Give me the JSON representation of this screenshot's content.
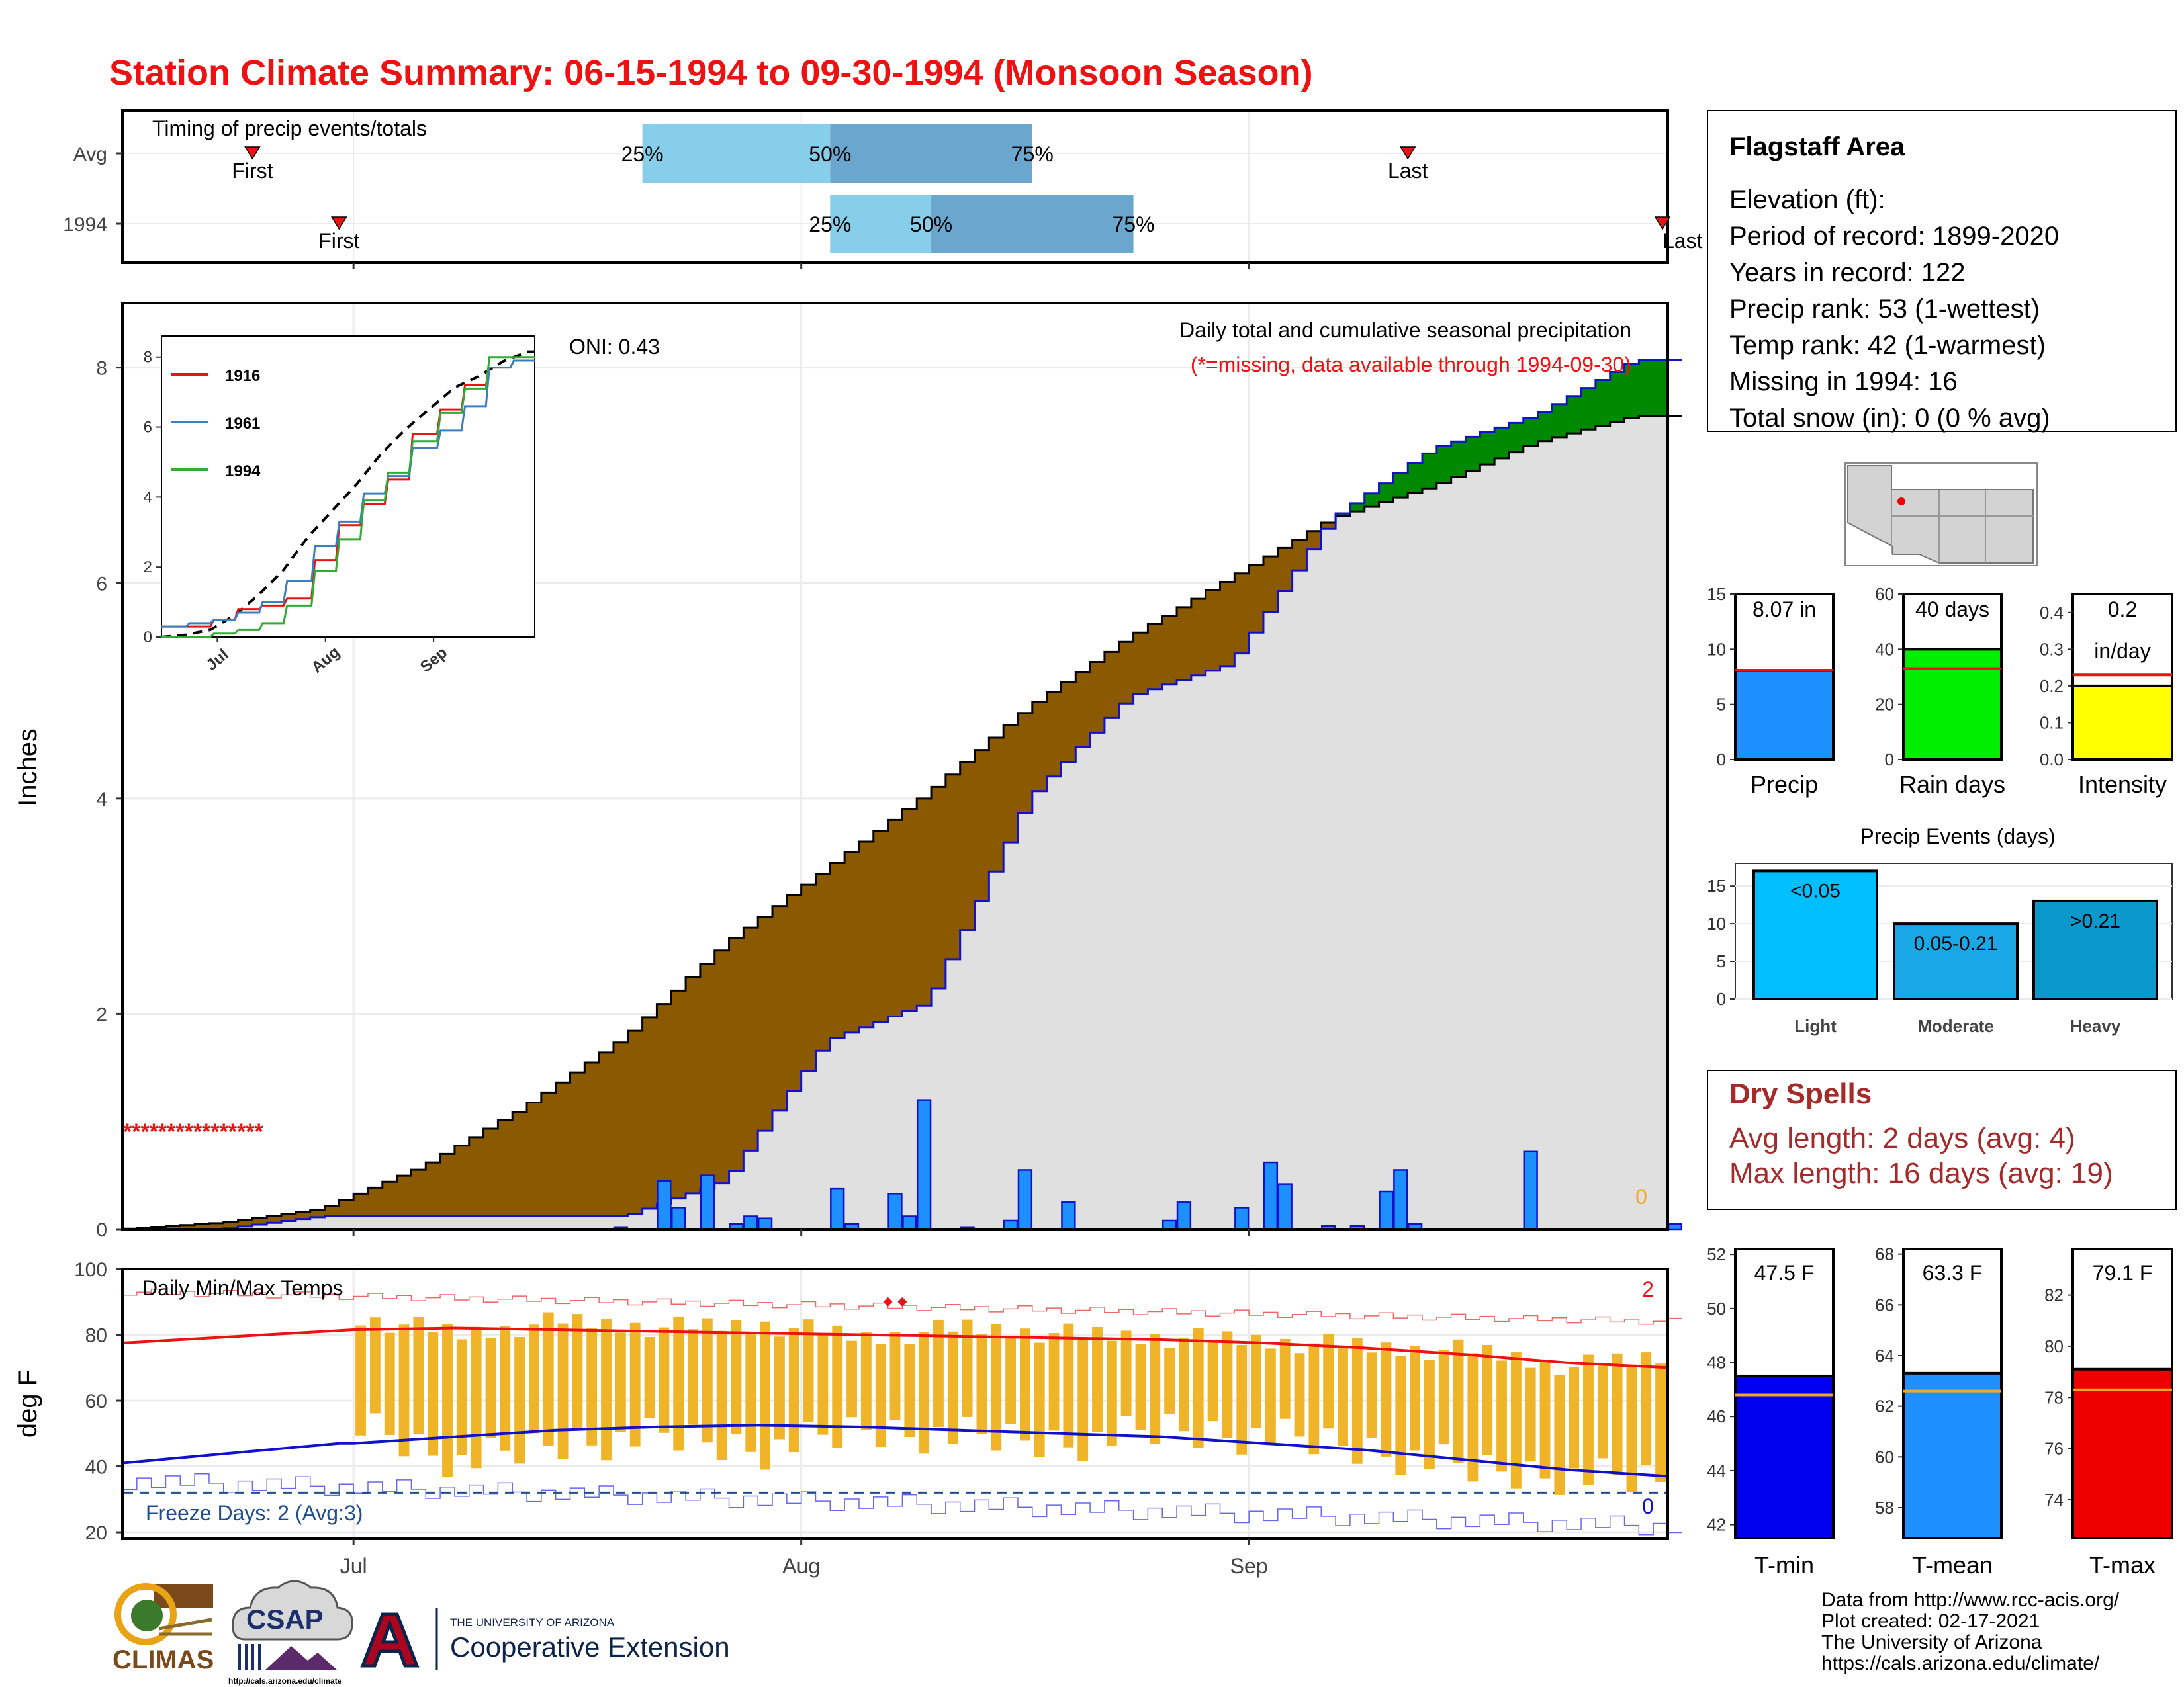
{
  "title": "Station Climate Summary: 06-15-1994 to 09-30-1994 (Monsoon Season)",
  "colors": {
    "title": "#ee1111",
    "q_light": "#87ceeb",
    "q_dark": "#6ba6cf",
    "deficit": "#8b5a00",
    "surplus": "#008800",
    "bars": "#1e8fff",
    "missing": "#ee1111",
    "dry": "#a52a2a",
    "tmax_line": "#ee1111",
    "tmin_line": "#1111cc"
  },
  "timing": {
    "title": "Timing of precip events/totals",
    "rows": [
      {
        "label": "Avg",
        "first": "First",
        "last": "Last",
        "q25": "25%",
        "q50": "50%",
        "q75": "75%",
        "first_date": "1994-06-24",
        "last_date": "1994-09-12",
        "q25_date": "1994-07-21",
        "q50_date": "1994-08-03",
        "q75_date": "1994-08-17"
      },
      {
        "label": "1994",
        "first": "First",
        "last": "Last",
        "q25": "25%",
        "q50": "50%",
        "q75": "75%",
        "first_date": "1994-06-30",
        "last_date": "1994-09-30",
        "q25_date": "1994-08-03",
        "q50_date": "1994-08-10",
        "q75_date": "1994-08-24"
      }
    ]
  },
  "x_ticks": [
    {
      "label": "Jul",
      "date": "1994-07-01"
    },
    {
      "label": "Aug",
      "date": "1994-08-01"
    },
    {
      "label": "Sep",
      "date": "1994-09-01"
    }
  ],
  "precip": {
    "ylabel": "Inches",
    "annotation_title": "Daily total and cumulative seasonal precipitation",
    "annotation_missing": "(*=missing, data available through 1994-09-30)",
    "oni": "ONI: 0.43",
    "missing_marker": "****************",
    "corner_value": "0",
    "ylim": [
      0,
      8.6
    ],
    "yticks": [
      "0",
      "2",
      "4",
      "6",
      "8"
    ]
  },
  "inset": {
    "legend": [
      "1916",
      "1961",
      "1994"
    ],
    "legend_colors": [
      "#ee1111",
      "#3a7fbf",
      "#33aa33"
    ],
    "yticks": [
      "0",
      "2",
      "4",
      "6",
      "8"
    ],
    "xticks": [
      "Jul",
      "Aug",
      "Sep"
    ]
  },
  "info": {
    "station": "Flagstaff Area",
    "lines": [
      "Elevation (ft):",
      "Period of record: 1899-2020",
      "Years in record: 122",
      "Precip rank: 53 (1-wettest)",
      "Temp rank: 42 (1-warmest)",
      "Missing in 1994: 16",
      "Total snow (in): 0 (0 % avg)"
    ]
  },
  "mini_bars": [
    {
      "label": "Precip",
      "value": 8.07,
      "value_text": "8.07 in",
      "avg": 8.1,
      "ymax": 15,
      "yticks": [
        "0",
        "5",
        "10",
        "15"
      ],
      "color": "#1e8fff"
    },
    {
      "label": "Rain days",
      "value": 40,
      "value_text": "40 days",
      "avg": 33,
      "ymax": 60,
      "yticks": [
        "0",
        "20",
        "40",
        "60"
      ],
      "color": "#00ee00"
    },
    {
      "label": "Intensity",
      "value": 0.2,
      "value_text": "0.2",
      "value_text2": "in/day",
      "avg": 0.23,
      "ymax": 0.45,
      "yticks": [
        "0.0",
        "0.1",
        "0.2",
        "0.3",
        "0.4"
      ],
      "color": "#ffff00"
    }
  ],
  "events": {
    "title": "Precip Events (days)",
    "categories": [
      "Light",
      "Moderate",
      "Heavy"
    ],
    "labels": [
      "<0.05",
      "0.05-0.21",
      ">0.21"
    ],
    "values": [
      17,
      10,
      13
    ],
    "colors": [
      "#00bfff",
      "#1aa7e6",
      "#0b98cc"
    ],
    "yticks": [
      "0",
      "5",
      "10",
      "15"
    ]
  },
  "dry": {
    "title": "Dry Spells",
    "avg": "Avg length: 2 days (avg: 4)",
    "max": "Max length: 16 days (avg: 19)"
  },
  "temps": {
    "title": "Daily Min/Max Temps",
    "ylabel": "deg F",
    "freeze": "Freeze Days: 2 (Avg:3)",
    "top_count": "2",
    "bottom_count": "0",
    "ylim": [
      18,
      100
    ],
    "yticks": [
      "20",
      "40",
      "60",
      "80",
      "100"
    ]
  },
  "temp_bars": [
    {
      "label": "T-min",
      "value": 47.5,
      "value_text": "47.5 F",
      "avg": 46.8,
      "ylim": [
        41.5,
        52.2
      ],
      "yticks": [
        "42",
        "44",
        "46",
        "48",
        "50",
        "52"
      ],
      "color": "#0000ee"
    },
    {
      "label": "T-mean",
      "value": 63.3,
      "value_text": "63.3 F",
      "avg": 62.6,
      "ylim": [
        56.8,
        68.2
      ],
      "yticks": [
        "58",
        "60",
        "62",
        "64",
        "66",
        "68"
      ],
      "color": "#1e8fff"
    },
    {
      "label": "T-max",
      "value": 79.1,
      "value_text": "79.1 F",
      "avg": 78.3,
      "ylim": [
        72.5,
        83.8
      ],
      "yticks": [
        "74",
        "76",
        "78",
        "80",
        "82"
      ],
      "color": "#ee0000"
    }
  ],
  "credits": [
    "Data from http://www.rcc-acis.org/",
    "Plot created: 02-17-2021",
    "The University of Arizona",
    "https://cals.arizona.edu/climate/"
  ],
  "logos": {
    "climas": "CLIMAS",
    "csap": "CSAP",
    "csap_url": "http://cals.arizona.edu/climate",
    "ua_top": "THE UNIVERSITY OF ARIZONA",
    "ua_bottom": "Cooperative Extension"
  },
  "chart_data": {
    "type": "area",
    "title": "Daily total and cumulative seasonal precipitation",
    "ylabel": "Inches",
    "ylim": [
      0,
      8.6
    ],
    "dates": [
      "06-15",
      "06-22",
      "06-29",
      "07-06",
      "07-13",
      "07-20",
      "07-27",
      "08-03",
      "08-10",
      "08-17",
      "08-24",
      "08-31",
      "09-07",
      "09-14",
      "09-21",
      "09-28"
    ],
    "series": [
      {
        "name": "Avg",
        "values": [
          0.0,
          0.06,
          0.19,
          0.58,
          1.13,
          1.78,
          2.65,
          3.35,
          4.05,
          4.85,
          5.5,
          6.05,
          6.6,
          6.9,
          7.3,
          7.55
        ]
      },
      {
        "name": "1994",
        "values": [
          0.0,
          0.0,
          0.12,
          0.12,
          0.12,
          0.12,
          0.45,
          1.75,
          2.1,
          4.0,
          4.95,
          5.25,
          6.6,
          7.25,
          7.55,
          8.07
        ]
      }
    ],
    "daily_precip": [
      {
        "date": "07-19",
        "in": 0.02
      },
      {
        "date": "07-22",
        "in": 0.45
      },
      {
        "date": "07-23",
        "in": 0.2
      },
      {
        "date": "07-25",
        "in": 0.5
      },
      {
        "date": "07-27",
        "in": 0.05
      },
      {
        "date": "07-28",
        "in": 0.12
      },
      {
        "date": "07-29",
        "in": 0.1
      },
      {
        "date": "08-03",
        "in": 0.38
      },
      {
        "date": "08-04",
        "in": 0.05
      },
      {
        "date": "08-07",
        "in": 0.33
      },
      {
        "date": "08-08",
        "in": 0.12
      },
      {
        "date": "08-09",
        "in": 1.2
      },
      {
        "date": "08-12",
        "in": 0.02
      },
      {
        "date": "08-15",
        "in": 0.08
      },
      {
        "date": "08-16",
        "in": 0.55
      },
      {
        "date": "08-19",
        "in": 0.25
      },
      {
        "date": "08-26",
        "in": 0.08
      },
      {
        "date": "08-27",
        "in": 0.25
      },
      {
        "date": "08-31",
        "in": 0.2
      },
      {
        "date": "09-02",
        "in": 0.62
      },
      {
        "date": "09-03",
        "in": 0.42
      },
      {
        "date": "09-06",
        "in": 0.03
      },
      {
        "date": "09-08",
        "in": 0.03
      },
      {
        "date": "09-10",
        "in": 0.35
      },
      {
        "date": "09-11",
        "in": 0.55
      },
      {
        "date": "09-12",
        "in": 0.05
      },
      {
        "date": "09-20",
        "in": 0.72
      },
      {
        "date": "09-30",
        "in": 0.05
      }
    ],
    "missing_range": [
      "06-15",
      "06-30"
    ],
    "temperature": {
      "dates": [
        "07-01",
        "07-08",
        "07-15",
        "07-22",
        "07-29",
        "08-05",
        "08-12",
        "08-19",
        "08-26",
        "09-02",
        "09-09",
        "09-16",
        "09-23",
        "09-30"
      ],
      "tmax": [
        85,
        80,
        84,
        82,
        83,
        79,
        82,
        80,
        79,
        78,
        76,
        75,
        70,
        74
      ],
      "tmin": [
        52,
        40,
        46,
        48,
        44,
        50,
        48,
        46,
        50,
        48,
        44,
        38,
        36,
        34
      ],
      "avg_tmax": [
        81.5,
        82,
        81.5,
        81,
        80.5,
        80,
        79.5,
        79,
        78.5,
        77.5,
        76,
        74,
        71.5,
        70
      ],
      "avg_tmin": [
        47,
        49,
        51,
        52,
        52.5,
        52,
        51,
        50,
        49,
        47,
        45,
        42,
        39,
        37
      ]
    }
  }
}
